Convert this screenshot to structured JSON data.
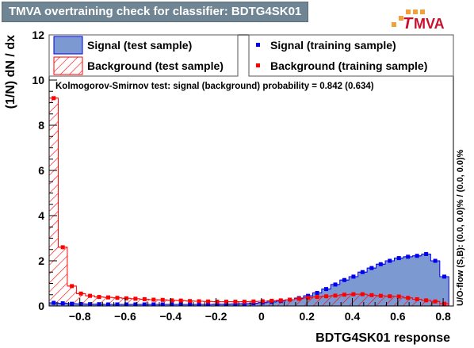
{
  "window": {
    "title": "TMVA overtraining check for classifier: BDTG4SK01"
  },
  "logo": {
    "text_t": "T",
    "text_rest": "MVA",
    "colors": {
      "accent": "#f2a03c",
      "text": "#c8102e"
    }
  },
  "colors": {
    "signal_fill": "#7d99d1",
    "signal_line": "#0000ee",
    "background_line": "#ff0000",
    "frame": "#000000"
  },
  "chart_data": {
    "type": "histogram",
    "xlabel": "BDTG4SK01 response",
    "ylabel": "(1/N) dN / dx",
    "xlim": [
      -0.935,
      0.845
    ],
    "ylim": [
      0,
      12
    ],
    "x_ticks": [
      -0.8,
      -0.6,
      -0.4,
      -0.2,
      0,
      0.2,
      0.4,
      0.6,
      0.8
    ],
    "x_tick_labels": [
      "−0.8",
      "−0.6",
      "−0.4",
      "−0.2",
      "0",
      "0.2",
      "0.4",
      "0.6",
      "0.8"
    ],
    "y_ticks": [
      0,
      2,
      4,
      6,
      8,
      10,
      12
    ],
    "y_tick_labels": [
      "0",
      "2",
      "4",
      "6",
      "8",
      "10",
      "12"
    ],
    "bin_edges_start": -0.935,
    "bin_width": 0.04,
    "series": [
      {
        "name": "Signal (test sample)",
        "style": "filled-histogram",
        "values": [
          0.14,
          0.12,
          0.1,
          0.09,
          0.08,
          0.08,
          0.07,
          0.07,
          0.07,
          0.07,
          0.07,
          0.07,
          0.07,
          0.07,
          0.07,
          0.07,
          0.07,
          0.07,
          0.08,
          0.08,
          0.09,
          0.1,
          0.12,
          0.15,
          0.18,
          0.22,
          0.28,
          0.35,
          0.45,
          0.58,
          0.75,
          0.95,
          1.15,
          1.3,
          1.5,
          1.68,
          1.85,
          2.0,
          2.12,
          2.18,
          2.22,
          2.3,
          2.0,
          1.3
        ]
      },
      {
        "name": "Background (test sample)",
        "style": "hatched-histogram",
        "values": [
          9.2,
          2.6,
          0.88,
          0.55,
          0.45,
          0.4,
          0.38,
          0.36,
          0.34,
          0.32,
          0.3,
          0.28,
          0.27,
          0.25,
          0.24,
          0.22,
          0.21,
          0.2,
          0.19,
          0.19,
          0.19,
          0.19,
          0.2,
          0.21,
          0.23,
          0.25,
          0.28,
          0.32,
          0.36,
          0.4,
          0.43,
          0.46,
          0.5,
          0.52,
          0.52,
          0.48,
          0.45,
          0.43,
          0.42,
          0.36,
          0.3,
          0.25,
          0.2,
          0.1
        ]
      },
      {
        "name": "Signal (training sample)",
        "style": "markers",
        "values": [
          0.14,
          0.12,
          0.1,
          0.09,
          0.08,
          0.08,
          0.07,
          0.07,
          0.07,
          0.07,
          0.07,
          0.07,
          0.07,
          0.07,
          0.07,
          0.07,
          0.07,
          0.07,
          0.08,
          0.08,
          0.09,
          0.1,
          0.12,
          0.15,
          0.18,
          0.22,
          0.28,
          0.35,
          0.45,
          0.58,
          0.75,
          0.95,
          1.15,
          1.3,
          1.5,
          1.68,
          1.85,
          2.0,
          2.12,
          2.18,
          2.22,
          2.3,
          2.0,
          1.3
        ]
      },
      {
        "name": "Background (training sample)",
        "style": "markers",
        "values": [
          9.2,
          2.6,
          0.88,
          0.55,
          0.45,
          0.4,
          0.38,
          0.36,
          0.34,
          0.32,
          0.3,
          0.28,
          0.27,
          0.25,
          0.24,
          0.22,
          0.21,
          0.2,
          0.19,
          0.19,
          0.19,
          0.19,
          0.2,
          0.21,
          0.23,
          0.25,
          0.28,
          0.32,
          0.36,
          0.4,
          0.43,
          0.46,
          0.5,
          0.52,
          0.52,
          0.48,
          0.45,
          0.43,
          0.42,
          0.36,
          0.3,
          0.25,
          0.2,
          0.1
        ]
      }
    ],
    "annotation": "Kolmogorov-Smirnov test: signal (background) probability = 0.842 (0.634)",
    "side_label": "U/O-flow (S,B): (0.0, 0.0)% / (0.0, 0.0)%",
    "legend_position": "top"
  }
}
